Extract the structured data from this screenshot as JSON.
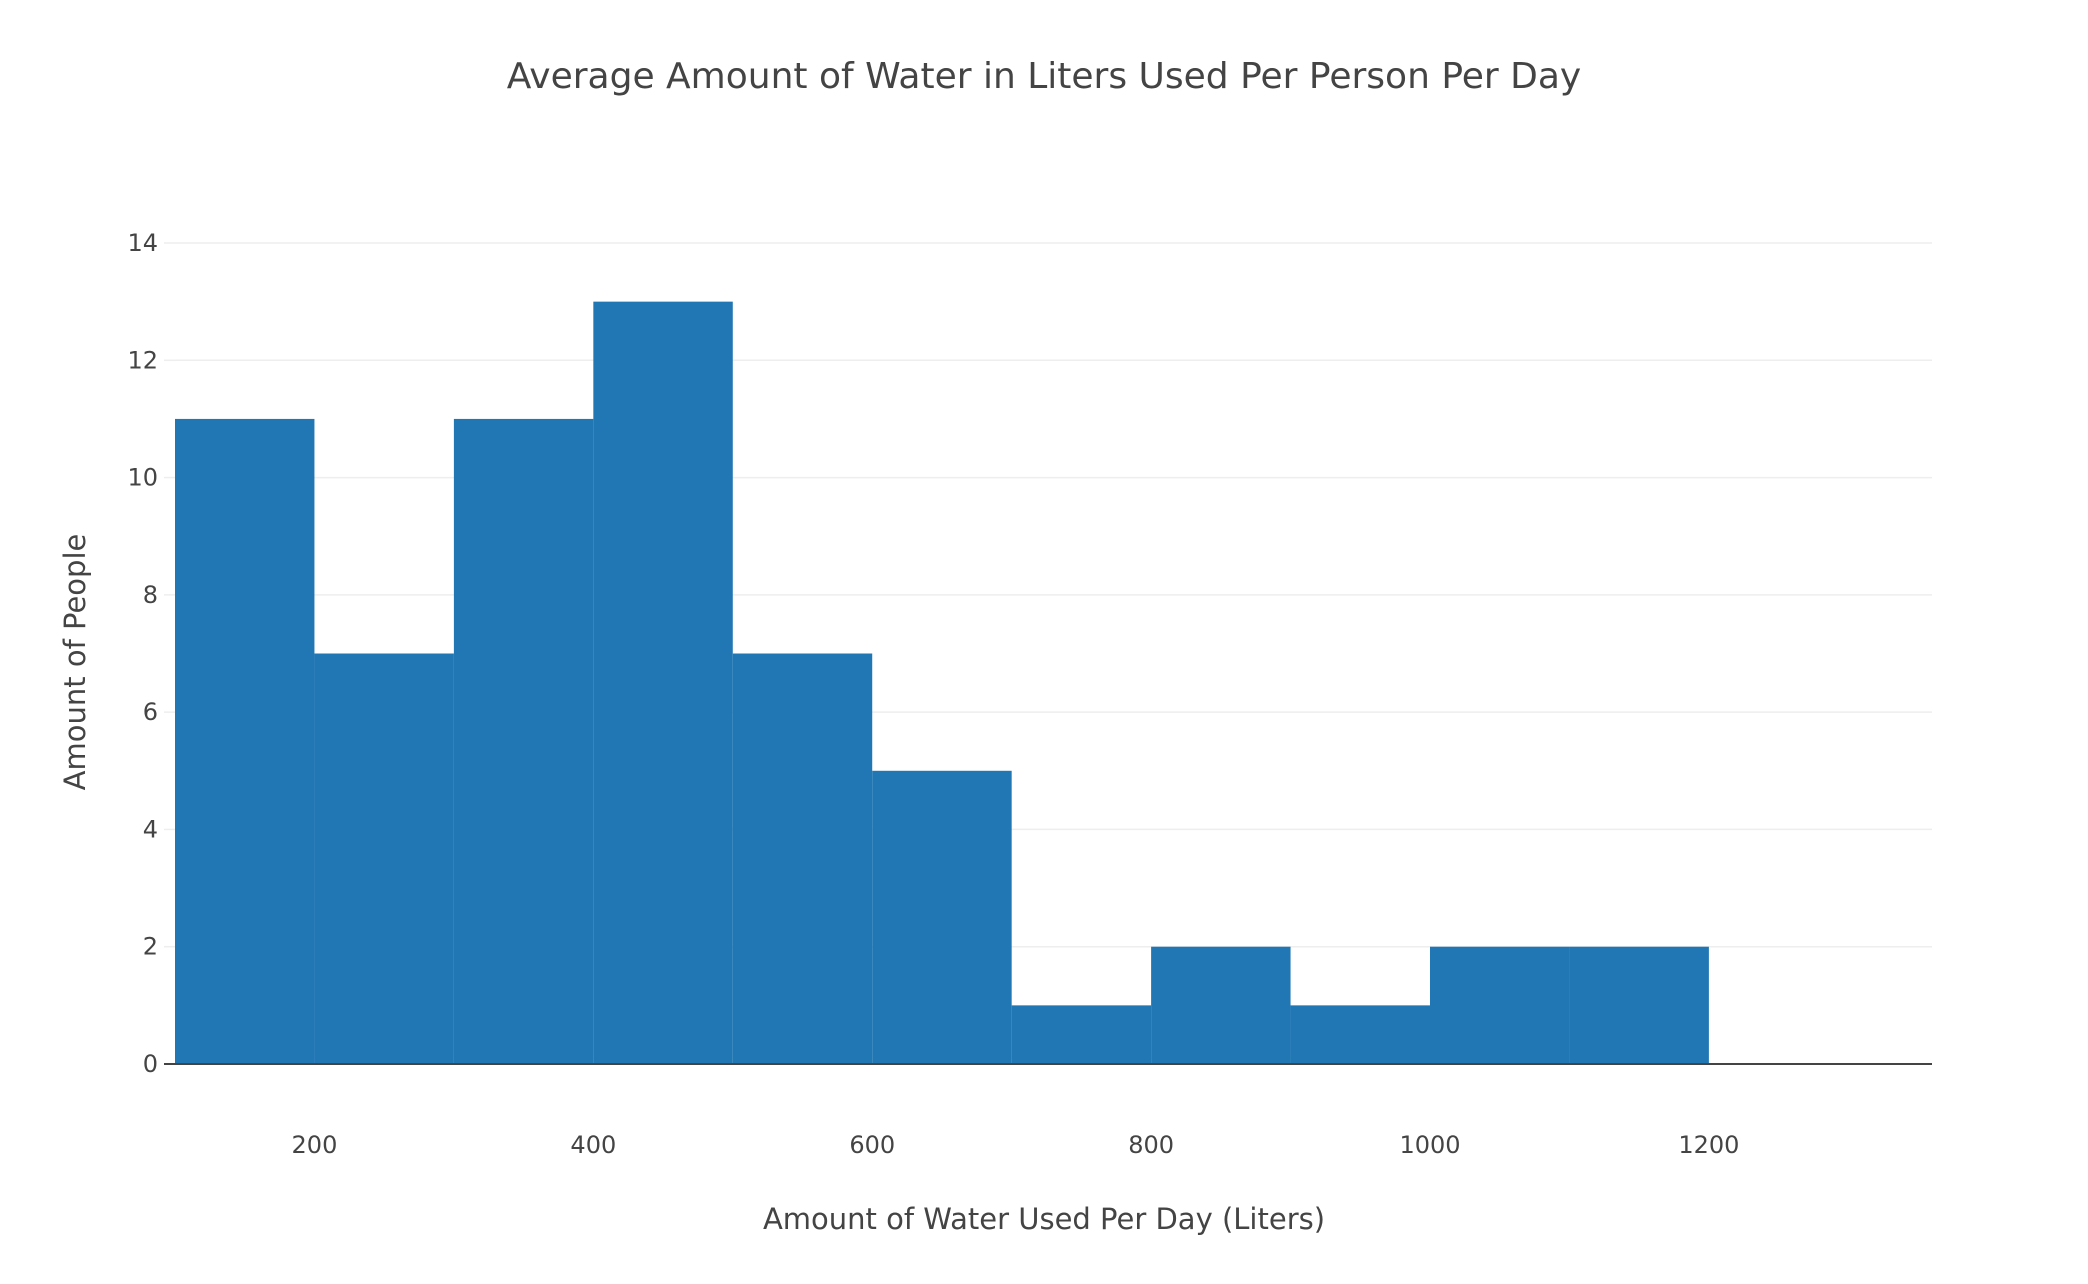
{
  "chart_data": {
    "type": "bar",
    "subtype": "histogram",
    "title": "Average Amount of Water in Liters Used Per Person Per Day",
    "xlabel": "Amount of Water Used Per Day (Liters)",
    "ylabel": "Amount of People",
    "bins": [
      {
        "start": 100,
        "end": 200,
        "count": 11
      },
      {
        "start": 200,
        "end": 300,
        "count": 7
      },
      {
        "start": 300,
        "end": 400,
        "count": 11
      },
      {
        "start": 400,
        "end": 500,
        "count": 13
      },
      {
        "start": 500,
        "end": 600,
        "count": 7
      },
      {
        "start": 600,
        "end": 700,
        "count": 5
      },
      {
        "start": 700,
        "end": 800,
        "count": 1
      },
      {
        "start": 800,
        "end": 900,
        "count": 2
      },
      {
        "start": 900,
        "end": 1000,
        "count": 1
      },
      {
        "start": 1000,
        "end": 1100,
        "count": 2
      },
      {
        "start": 1100,
        "end": 1200,
        "count": 2
      }
    ],
    "xlim": [
      100,
      1360
    ],
    "ylim": [
      0,
      14
    ],
    "xticks": [
      200,
      400,
      600,
      800,
      1000,
      1200
    ],
    "yticks": [
      0,
      2,
      4,
      6,
      8,
      10,
      12,
      14
    ],
    "bar_color": "#2077b4",
    "grid": true,
    "legend": "none"
  }
}
